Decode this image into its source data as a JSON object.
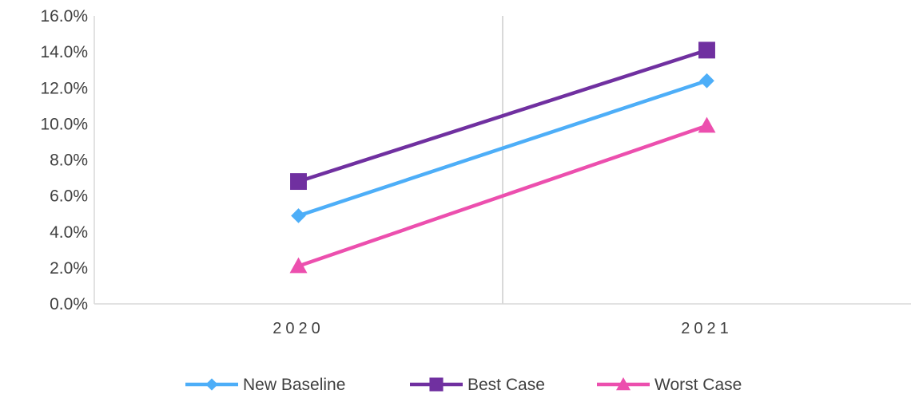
{
  "chart_data": {
    "type": "line",
    "title": "",
    "xlabel": "",
    "ylabel": "",
    "categories": [
      "2020",
      "2021"
    ],
    "ylim": [
      0,
      0.16
    ],
    "y_ticks": [
      "0.0%",
      "2.0%",
      "4.0%",
      "6.0%",
      "8.0%",
      "10.0%",
      "12.0%",
      "14.0%",
      "16.0%"
    ],
    "y_tick_values": [
      0,
      0.02,
      0.04,
      0.06,
      0.08,
      0.1,
      0.12,
      0.14,
      0.16
    ],
    "grid": false,
    "category_separator": true,
    "legend_position": "bottom",
    "series": [
      {
        "name": "New Baseline",
        "values": [
          0.049,
          0.124
        ],
        "color": "#4DAEF8",
        "marker": "diamond"
      },
      {
        "name": "Best Case",
        "values": [
          0.068,
          0.141
        ],
        "color": "#7030A0",
        "marker": "square"
      },
      {
        "name": "Worst Case",
        "values": [
          0.021,
          0.099
        ],
        "color": "#EC4FAE",
        "marker": "triangle"
      }
    ]
  },
  "axis_colors": {
    "axis_line": "#D9D9D9",
    "tick_text": "#404040"
  }
}
